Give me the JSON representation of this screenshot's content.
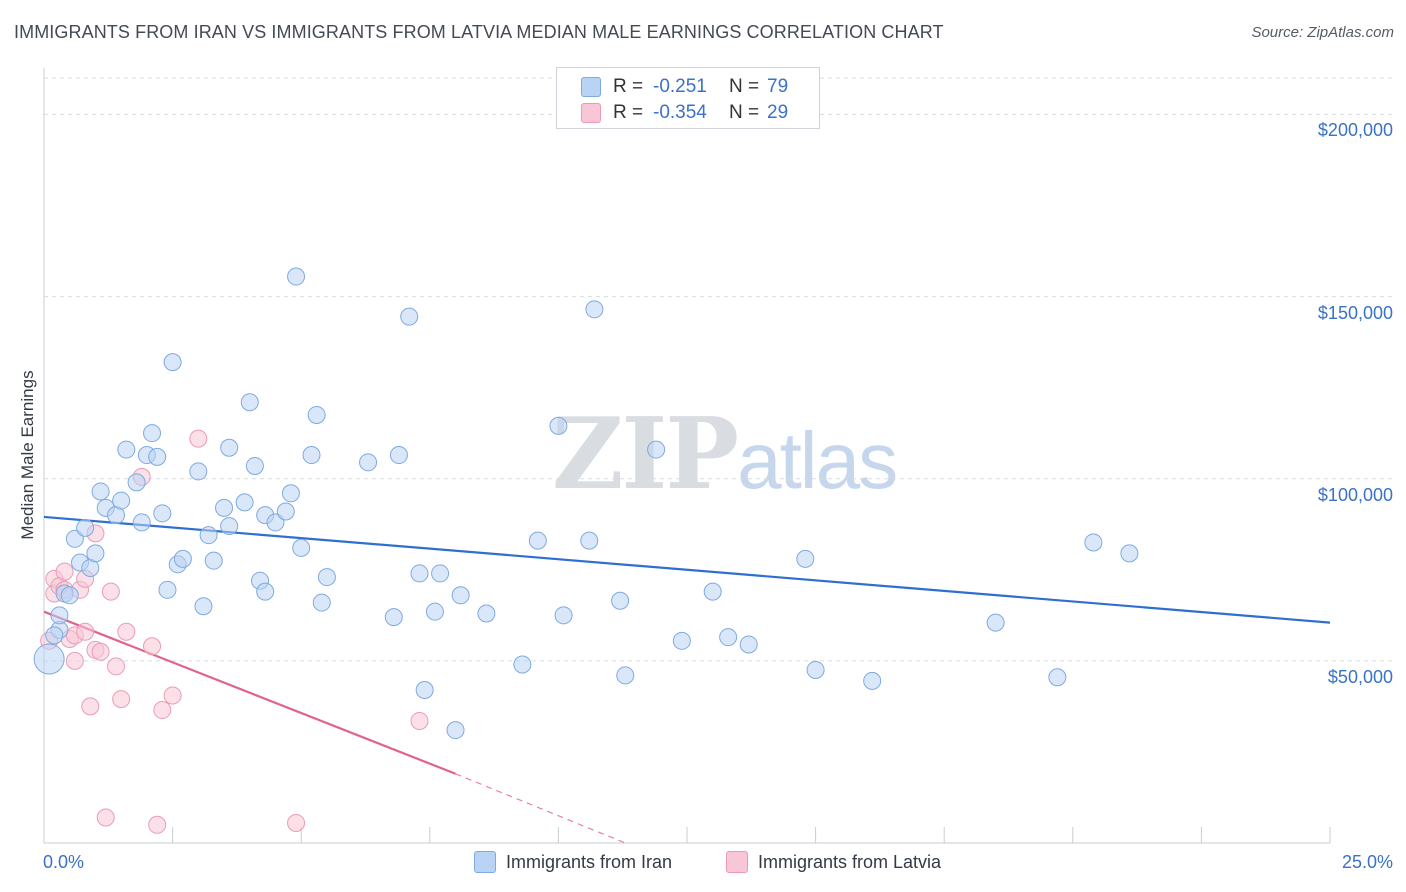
{
  "title": "IMMIGRANTS FROM IRAN VS IMMIGRANTS FROM LATVIA MEDIAN MALE EARNINGS CORRELATION CHART",
  "source": "Source: ZipAtlas.com",
  "watermark": {
    "zip": "ZIP",
    "atlas": "atlas"
  },
  "legend": {
    "rows": [
      {
        "r_label": "R =",
        "r_value": "-0.251",
        "n_label": "N =",
        "n_value": "79"
      },
      {
        "r_label": "R =",
        "r_value": "-0.354",
        "n_label": "N =",
        "n_value": "29"
      }
    ]
  },
  "bottom_legend": {
    "iran": "Immigrants from Iran",
    "latvia": "Immigrants from Latvia"
  },
  "colors": {
    "iran_fill": "#b9d3f4",
    "iran_stroke": "#7eaae0",
    "iran_line": "#2f6fcf",
    "latvia_fill": "#f8c6d6",
    "latvia_stroke": "#eb9bb7",
    "latvia_line": "#e0628f",
    "axis_text": "#3a72c8",
    "grid": "#d8dbe0"
  },
  "chart_data": {
    "type": "scatter",
    "title": "IMMIGRANTS FROM IRAN VS IMMIGRANTS FROM LATVIA MEDIAN MALE EARNINGS CORRELATION CHART",
    "xlabel": "",
    "ylabel": "Median Male Earnings",
    "xlim": [
      0,
      25
    ],
    "ylim": [
      0,
      210000
    ],
    "x_tick_labels": {
      "left": "0.0%",
      "right": "25.0%"
    },
    "y_ticks": [
      {
        "value": 50000,
        "label": "$50,000"
      },
      {
        "value": 100000,
        "label": "$100,000"
      },
      {
        "value": 150000,
        "label": "$150,000"
      },
      {
        "value": 200000,
        "label": "$200,000"
      }
    ],
    "series": [
      {
        "name": "Immigrants from Iran",
        "r": -0.251,
        "n": 79,
        "trend": {
          "x0": 0,
          "y0": 89500,
          "x1": 25,
          "y1": 60500
        },
        "points": [
          [
            0.1,
            50500
          ],
          [
            0.3,
            58500
          ],
          [
            0.3,
            62500
          ],
          [
            0.4,
            68500
          ],
          [
            0.5,
            68000
          ],
          [
            0.6,
            83500
          ],
          [
            0.7,
            77000
          ],
          [
            0.8,
            86500
          ],
          [
            0.9,
            75500
          ],
          [
            1.0,
            79500
          ],
          [
            1.1,
            96500
          ],
          [
            1.2,
            92000
          ],
          [
            1.4,
            90000
          ],
          [
            1.5,
            94000
          ],
          [
            1.6,
            108000
          ],
          [
            1.8,
            99000
          ],
          [
            1.9,
            88000
          ],
          [
            2.0,
            106500
          ],
          [
            2.1,
            112500
          ],
          [
            2.2,
            106000
          ],
          [
            2.3,
            90500
          ],
          [
            2.4,
            69500
          ],
          [
            2.5,
            132000
          ],
          [
            2.6,
            76500
          ],
          [
            2.7,
            78000
          ],
          [
            3.0,
            102000
          ],
          [
            3.1,
            65000
          ],
          [
            3.2,
            84500
          ],
          [
            3.3,
            77500
          ],
          [
            3.5,
            92000
          ],
          [
            3.6,
            108500
          ],
          [
            3.6,
            87000
          ],
          [
            3.9,
            93500
          ],
          [
            4.0,
            121000
          ],
          [
            4.1,
            103500
          ],
          [
            4.2,
            72000
          ],
          [
            4.3,
            90000
          ],
          [
            4.3,
            69000
          ],
          [
            4.5,
            88000
          ],
          [
            4.7,
            91000
          ],
          [
            4.8,
            96000
          ],
          [
            4.9,
            155500
          ],
          [
            5.0,
            81000
          ],
          [
            5.2,
            106500
          ],
          [
            5.3,
            117500
          ],
          [
            5.4,
            66000
          ],
          [
            5.5,
            73000
          ],
          [
            6.3,
            104500
          ],
          [
            6.8,
            62000
          ],
          [
            6.9,
            106500
          ],
          [
            7.1,
            144500
          ],
          [
            7.3,
            74000
          ],
          [
            7.4,
            42000
          ],
          [
            7.6,
            63500
          ],
          [
            7.7,
            74000
          ],
          [
            8.0,
            31000
          ],
          [
            8.1,
            68000
          ],
          [
            8.6,
            63000
          ],
          [
            9.3,
            49000
          ],
          [
            9.6,
            83000
          ],
          [
            10.0,
            114500
          ],
          [
            10.1,
            62500
          ],
          [
            10.6,
            83000
          ],
          [
            10.7,
            146500
          ],
          [
            11.2,
            66500
          ],
          [
            11.3,
            46000
          ],
          [
            11.9,
            108000
          ],
          [
            12.4,
            55500
          ],
          [
            13.0,
            69000
          ],
          [
            13.3,
            56500
          ],
          [
            13.7,
            54500
          ],
          [
            14.8,
            78000
          ],
          [
            15.0,
            47500
          ],
          [
            16.1,
            44500
          ],
          [
            18.5,
            60500
          ],
          [
            19.7,
            45500
          ],
          [
            20.4,
            82500
          ],
          [
            21.1,
            79500
          ],
          [
            0.2,
            57000
          ]
        ]
      },
      {
        "name": "Immigrants from Latvia",
        "r": -0.354,
        "n": 29,
        "trend": {
          "x0": 0,
          "y0": 63500,
          "x1": 8.0,
          "y1": 19000
        },
        "trend_dashed": {
          "x0": 8.0,
          "y0": 19000,
          "x1": 11.3,
          "y1": 0
        },
        "points": [
          [
            0.1,
            55500
          ],
          [
            0.2,
            68500
          ],
          [
            0.2,
            72500
          ],
          [
            0.3,
            70500
          ],
          [
            0.4,
            74500
          ],
          [
            0.4,
            69500
          ],
          [
            0.5,
            56000
          ],
          [
            0.6,
            50000
          ],
          [
            0.6,
            57000
          ],
          [
            0.7,
            69500
          ],
          [
            0.8,
            72500
          ],
          [
            0.8,
            58000
          ],
          [
            0.9,
            37500
          ],
          [
            1.0,
            85000
          ],
          [
            1.0,
            53000
          ],
          [
            1.1,
            52500
          ],
          [
            1.2,
            7000
          ],
          [
            1.3,
            69000
          ],
          [
            1.4,
            48500
          ],
          [
            1.5,
            39500
          ],
          [
            1.6,
            58000
          ],
          [
            1.9,
            100500
          ],
          [
            2.1,
            54000
          ],
          [
            2.2,
            5000
          ],
          [
            2.3,
            36500
          ],
          [
            2.5,
            40500
          ],
          [
            3.0,
            111000
          ],
          [
            4.9,
            5500
          ],
          [
            7.3,
            33500
          ]
        ]
      }
    ]
  }
}
